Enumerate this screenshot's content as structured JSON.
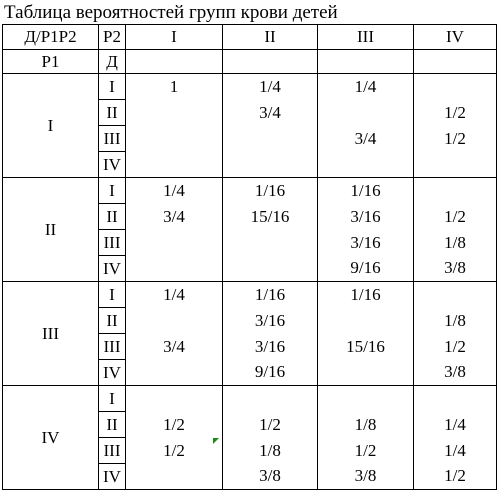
{
  "caption": "Таблица вероятностей групп крови детей",
  "header": {
    "corner_top": "Д/P1P2",
    "corner_sub": "P2",
    "groups": [
      "I",
      "II",
      "III",
      "IV"
    ],
    "row_label": "P1",
    "sub_label": "Д"
  },
  "blocks": [
    {
      "p1": "I",
      "rows": [
        {
          "d": "I",
          "v": [
            "1",
            "1/4",
            "1/4",
            ""
          ]
        },
        {
          "d": "II",
          "v": [
            "",
            "3/4",
            "",
            "1/2"
          ]
        },
        {
          "d": "III",
          "v": [
            "",
            "",
            "3/4",
            "1/2"
          ]
        },
        {
          "d": "IV",
          "v": [
            "",
            "",
            "",
            ""
          ]
        }
      ]
    },
    {
      "p1": "II",
      "rows": [
        {
          "d": "I",
          "v": [
            "1/4",
            "1/16",
            "1/16",
            ""
          ]
        },
        {
          "d": "II",
          "v": [
            "3/4",
            "15/16",
            "3/16",
            "1/2"
          ]
        },
        {
          "d": "III",
          "v": [
            "",
            "",
            "3/16",
            "1/8"
          ]
        },
        {
          "d": "IV",
          "v": [
            "",
            "",
            "9/16",
            "3/8"
          ]
        }
      ]
    },
    {
      "p1": "III",
      "rows": [
        {
          "d": "I",
          "v": [
            "1/4",
            "1/16",
            "1/16",
            ""
          ]
        },
        {
          "d": "II",
          "v": [
            "",
            "3/16",
            "",
            "1/8"
          ]
        },
        {
          "d": "III",
          "v": [
            "3/4",
            "3/16",
            "15/16",
            "1/2"
          ]
        },
        {
          "d": "IV",
          "v": [
            "",
            "9/16",
            "",
            "3/8"
          ]
        }
      ]
    },
    {
      "p1": "IV",
      "rows": [
        {
          "d": "I",
          "v": [
            "",
            "",
            "",
            ""
          ]
        },
        {
          "d": "II",
          "v": [
            "1/2",
            "1/2",
            "1/8",
            "1/4"
          ]
        },
        {
          "d": "III",
          "v": [
            "1/2",
            "1/8",
            "1/2",
            "1/4"
          ]
        },
        {
          "d": "IV",
          "v": [
            "",
            "3/8",
            "3/8",
            "1/2"
          ]
        }
      ]
    }
  ]
}
